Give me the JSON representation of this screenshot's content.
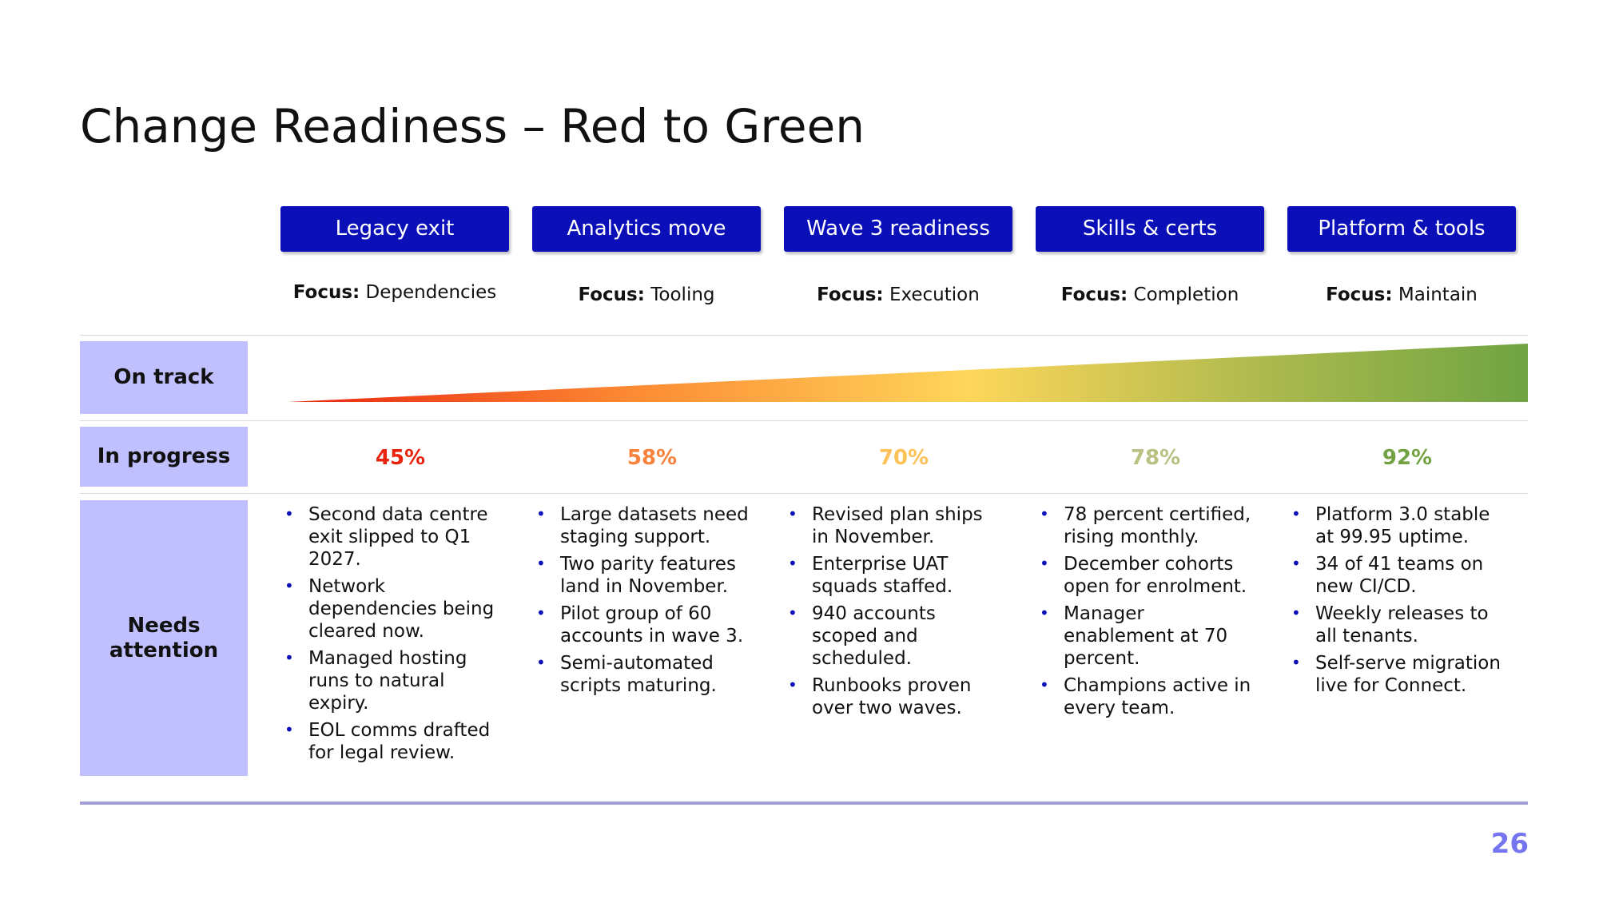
{
  "title": "Change Readiness – Red to Green",
  "focus_prefix": "Focus:",
  "columns": [
    {
      "name": "Legacy exit",
      "focus": "Dependencies",
      "percent": "45%",
      "color": "#e8240f",
      "bullets": [
        "Second data centre exit slipped to Q1 2027.",
        "Network dependencies being cleared now.",
        "Managed hosting runs to natural expiry.",
        "EOL comms drafted for legal review."
      ]
    },
    {
      "name": "Analytics move",
      "focus": "Tooling",
      "percent": "58%",
      "color": "#f8823c",
      "bullets": [
        "Large datasets need staging support.",
        "Two parity features land in November.",
        "Pilot group of 60 accounts in wave 3.",
        "Semi-automated scripts maturing."
      ]
    },
    {
      "name": "Wave 3 readiness",
      "focus": "Execution",
      "percent": "70%",
      "color": "#fbc25a",
      "bullets": [
        "Revised plan ships in November.",
        "Enterprise UAT squads staffed.",
        "940 accounts scoped and scheduled.",
        "Runbooks proven over two waves."
      ]
    },
    {
      "name": "Skills & certs",
      "focus": "Completion",
      "percent": "78%",
      "color": "#b9c082",
      "bullets": [
        "78 percent certified, rising monthly.",
        "December cohorts open for enrolment.",
        "Manager enablement at 70 percent.",
        "Champions active in every team."
      ]
    },
    {
      "name": "Platform & tools",
      "focus": "Maintain",
      "percent": "92%",
      "color": "#72a242",
      "bullets": [
        "Platform 3.0 stable at 99.95 uptime.",
        "34 of 41 teams on new CI/CD.",
        "Weekly releases to all tenants.",
        "Self-serve migration live for Connect."
      ]
    }
  ],
  "row_labels": {
    "on_track": "On track",
    "in_progress": "In progress",
    "needs_attention": "Needs attention"
  },
  "gradient_colors": [
    "#e8240f",
    "#fd8b34",
    "#fdd65a",
    "#a9b84e",
    "#6fa442"
  ],
  "page_number": "26",
  "colors": {
    "header_bg": "#0a0fb8",
    "row_label_bg": "#c0c0ff",
    "footer_line": "#a39fd6",
    "page_number": "#7575f0"
  }
}
